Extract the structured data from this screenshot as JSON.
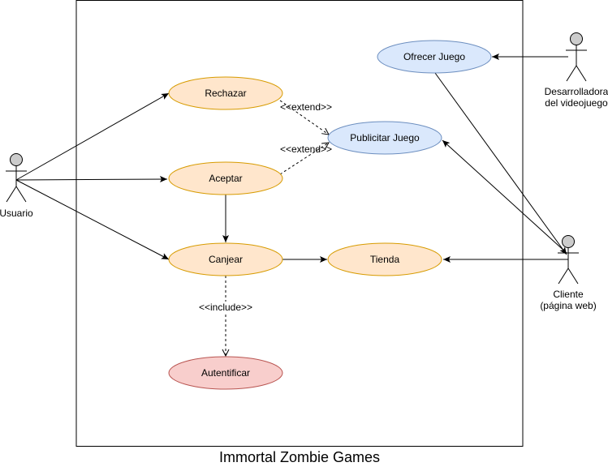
{
  "system": {
    "title": "Immortal Zombie Games"
  },
  "actors": {
    "usuario": "Usuario",
    "desarrolladora": [
      "Desarrolladora",
      "del videojuego"
    ],
    "cliente": [
      "Cliente",
      "(página web)"
    ]
  },
  "use_cases": {
    "rechazar": "Rechazar",
    "aceptar": "Aceptar",
    "canjear": "Canjear",
    "autentificar": "Autentificar",
    "ofrecer": "Ofrecer Juego",
    "publicitar": "Publicitar Juego",
    "tienda": "Tienda"
  },
  "relations": {
    "extend1": "<<extend>>",
    "extend2": "<<extend>>",
    "include": "<<include>>"
  },
  "colors": {
    "orange_fill": "#ffe6cc",
    "orange_stroke": "#d79b00",
    "blue_fill": "#dae8fc",
    "blue_stroke": "#6c8ebf",
    "red_fill": "#f8cecc",
    "red_stroke": "#b85450",
    "actor_fill": "#cccccc"
  }
}
